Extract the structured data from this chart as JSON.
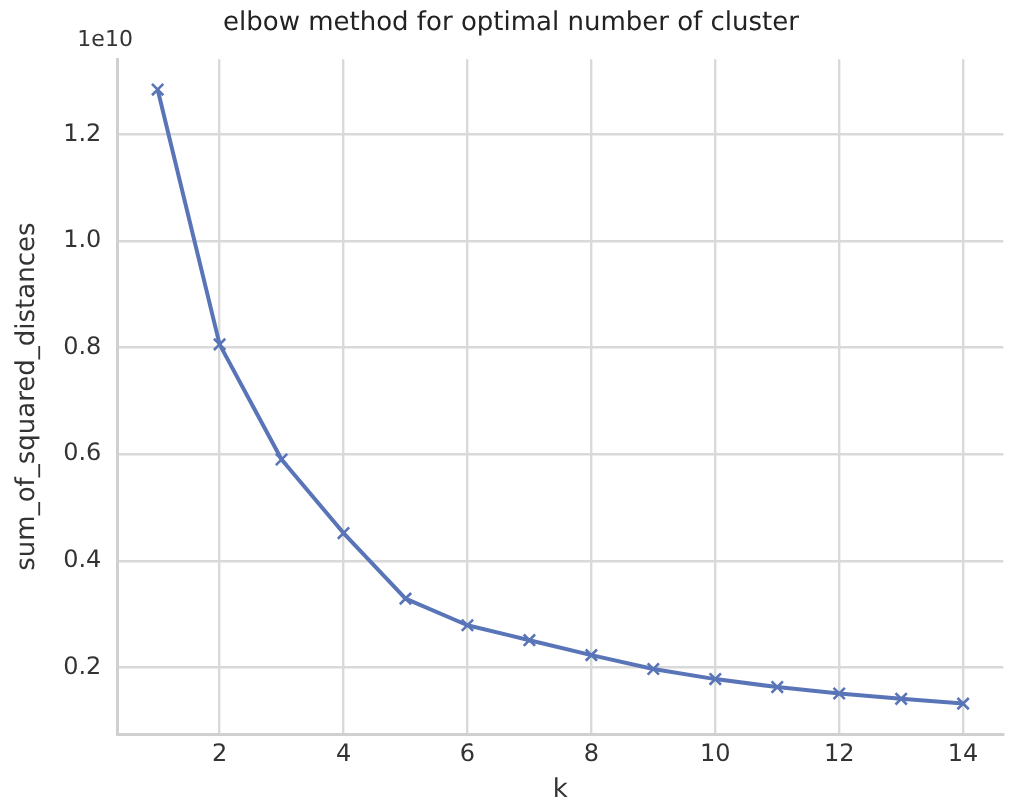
{
  "chart_data": {
    "type": "line",
    "title": "elbow method for optimal number of cluster",
    "xlabel": "k",
    "ylabel": "sum_of_squared_distances",
    "annotations": [
      "1e10"
    ],
    "x": [
      1,
      2,
      3,
      4,
      5,
      6,
      7,
      8,
      9,
      10,
      11,
      12,
      13,
      14
    ],
    "series": [
      {
        "color": "#5975b8",
        "values": [
          1.284,
          0.806,
          0.59,
          0.452,
          0.329,
          0.279,
          0.251,
          0.223,
          0.197,
          0.178,
          0.163,
          0.151,
          0.141,
          0.132
        ]
      }
    ],
    "xlim": [
      0.35,
      14.65
    ],
    "xticks": [
      2,
      4,
      6,
      8,
      10,
      12,
      14
    ],
    "ylim": [
      0.075,
      1.341
    ],
    "yticks": [
      {
        "value": 0.2,
        "label": "0.2"
      },
      {
        "value": 0.4,
        "label": "0.4"
      },
      {
        "value": 0.6,
        "label": "0.6"
      },
      {
        "value": 0.8,
        "label": "0.8"
      },
      {
        "value": 1.0,
        "label": "1.0"
      },
      {
        "value": 1.2,
        "label": "1.2"
      }
    ],
    "grid": true,
    "legend": false,
    "marker": "cross",
    "line_style": "solid"
  }
}
